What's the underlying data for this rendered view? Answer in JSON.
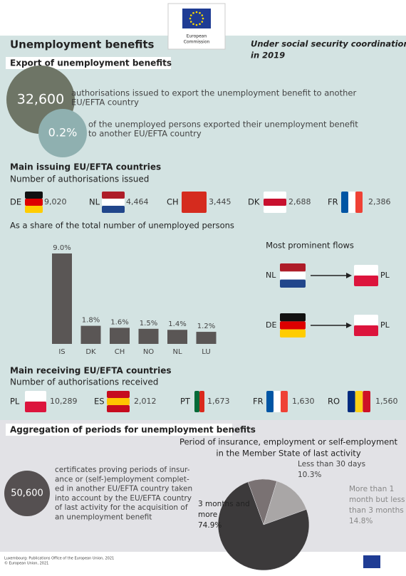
{
  "logo": {
    "lines": [
      "European",
      "Commission"
    ]
  },
  "header": {
    "title": "Unemployment benefits",
    "subtitle_lines": [
      "Under social security coordination",
      "in 2019"
    ]
  },
  "export": {
    "heading": "Export of unemployment benefits",
    "stats": [
      {
        "value": "32,600",
        "lines": [
          "authorisations issued to export the unemployment benefit to another",
          "EU/EFTA country"
        ]
      },
      {
        "value": "0.2%",
        "lines": [
          "of the unemployed persons exported their unemployment benefit",
          "to another EU/EFTA country"
        ]
      }
    ]
  },
  "issuing": {
    "heading": "Main issuing EU/EFTA countries",
    "subheading": "Number of authorisations issued",
    "countries": [
      {
        "code": "DE",
        "value": "9,020"
      },
      {
        "code": "NL",
        "value": "4,464"
      },
      {
        "code": "CH",
        "value": "3,445"
      },
      {
        "code": "DK",
        "value": "2,688"
      },
      {
        "code": "FR",
        "value": "2,386"
      }
    ]
  },
  "share_chart": {
    "type": "bar",
    "title": "As a share of the total number of unemployed persons",
    "categories": [
      "IS",
      "DK",
      "CH",
      "NO",
      "NL",
      "LU"
    ],
    "values": [
      9.0,
      1.8,
      1.6,
      1.5,
      1.4,
      1.2
    ],
    "value_labels": [
      "9.0%",
      "1.8%",
      "1.6%",
      "1.5%",
      "1.4%",
      "1.2%"
    ],
    "color": "#5a5655",
    "ylim": [
      0,
      9
    ]
  },
  "flows": {
    "title": "Most prominent flows",
    "items": [
      {
        "from": "NL",
        "to": "PL"
      },
      {
        "from": "DE",
        "to": "PL"
      }
    ]
  },
  "receiving": {
    "heading": "Main receiving EU/EFTA countries",
    "subheading": "Number of authorisations received",
    "countries": [
      {
        "code": "PL",
        "value": "10,289"
      },
      {
        "code": "ES",
        "value": "2,012"
      },
      {
        "code": "PT",
        "value": "1,673"
      },
      {
        "code": "FR",
        "value": "1,630"
      },
      {
        "code": "RO",
        "value": "1,560"
      }
    ]
  },
  "aggregation": {
    "heading": "Aggregation of periods for unemployment benefits",
    "stat": {
      "value": "50,600",
      "lines": [
        "certificates proving periods of insur-",
        "ance or (self-)employment complet-",
        "ed in another EU/EFTA country taken",
        "into account by the EU/EFTA country",
        "of last activity for the acquisition of",
        "an unemployment benefit"
      ]
    },
    "chart": {
      "type": "pie",
      "title_lines": [
        "Period of insurance, employment or self-employment",
        "in the Member State of last activity"
      ],
      "categories": [
        "Less than 30 days",
        "More than 1 month but less than 3 months",
        "3 months and more"
      ],
      "values": [
        10.3,
        14.8,
        74.9
      ],
      "value_labels": [
        "10.3%",
        "14.8%",
        "74.9%"
      ],
      "colors": [
        "#7a7273",
        "#a9a6a6",
        "#3c3a3b"
      ]
    }
  },
  "footer": {
    "lines": [
      "Luxembourg: Publications Office of the European Union, 2021",
      "© European Union, 2021"
    ]
  }
}
